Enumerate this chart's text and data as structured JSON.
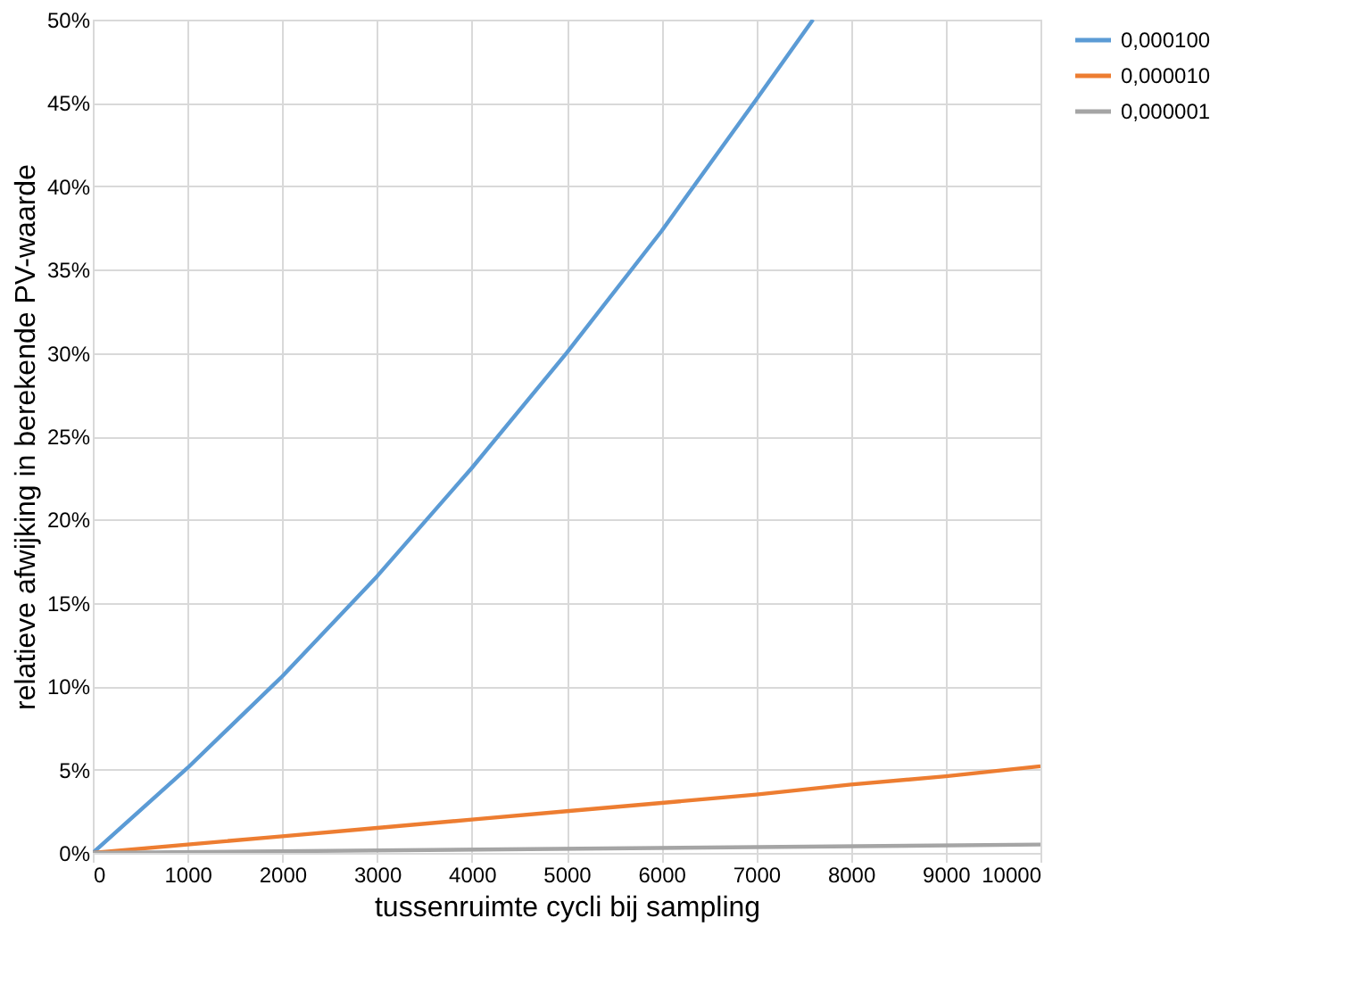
{
  "chart_data": {
    "type": "line",
    "xlabel": "tussenruimte cycli bij sampling",
    "ylabel": "relatieve afwijking in berekende PV-waarde",
    "xlim": [
      0,
      10000
    ],
    "xticks": [
      0,
      1000,
      2000,
      3000,
      4000,
      5000,
      6000,
      7000,
      8000,
      9000,
      10000
    ],
    "ylim": [
      0,
      50
    ],
    "yticks": [
      {
        "value": 0,
        "label": "0%"
      },
      {
        "value": 5,
        "label": "5%"
      },
      {
        "value": 10,
        "label": "10%"
      },
      {
        "value": 15,
        "label": "15%"
      },
      {
        "value": 20,
        "label": "20%"
      },
      {
        "value": 25,
        "label": "25%"
      },
      {
        "value": 30,
        "label": "30%"
      },
      {
        "value": 35,
        "label": "35%"
      },
      {
        "value": 40,
        "label": "40%"
      },
      {
        "value": 45,
        "label": "45%"
      },
      {
        "value": 50,
        "label": "50%"
      }
    ],
    "grid": true,
    "legend": "right",
    "line_style": "solid",
    "marker": "none",
    "series": [
      {
        "name": "0,000100",
        "color": "#5b9bd5",
        "x": [
          0,
          1000,
          2000,
          3000,
          4000,
          5000,
          6000,
          7000,
          7600
        ],
        "values": [
          0,
          5.1,
          10.6,
          16.6,
          23.1,
          30.0,
          37.3,
          45.2,
          50
        ]
      },
      {
        "name": "0,000010",
        "color": "#ed7d31",
        "x": [
          0,
          1000,
          2000,
          3000,
          4000,
          5000,
          6000,
          7000,
          8000,
          9000,
          10000
        ],
        "values": [
          0,
          0.5,
          1.0,
          1.5,
          2.0,
          2.5,
          3.0,
          3.5,
          4.1,
          4.6,
          5.2
        ]
      },
      {
        "name": "0,000001",
        "color": "#a5a5a5",
        "x": [
          0,
          10000
        ],
        "values": [
          0,
          0.5
        ]
      }
    ]
  }
}
